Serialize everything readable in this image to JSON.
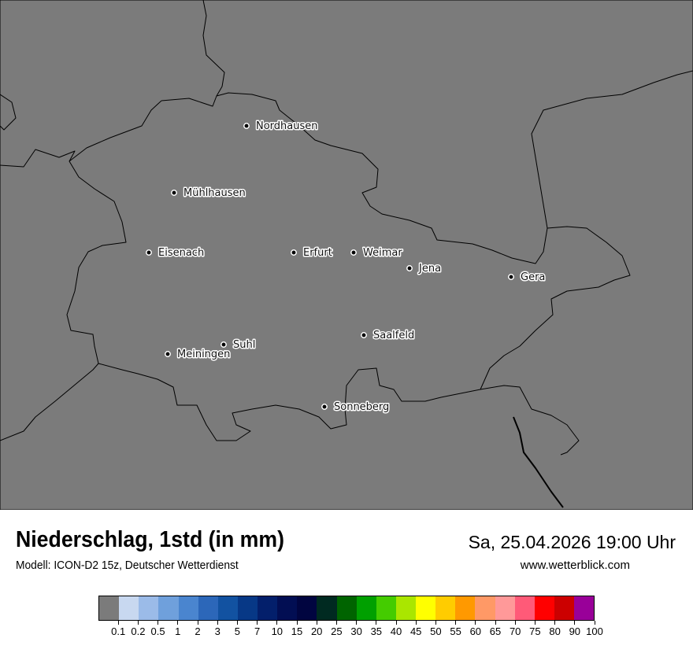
{
  "header": {
    "title": "Niederschlag, 1std (in mm)",
    "subtitle": "Modell: ICON-D2 15z, Deutscher Wetterdienst",
    "datetime": "Sa, 25.04.2026 19:00 Uhr",
    "website": "www.wetterblick.com"
  },
  "map": {
    "background_color": "#7b7b7b",
    "cities": [
      {
        "name": "Nordhausen"
      },
      {
        "name": "Mühlhausen"
      },
      {
        "name": "Eisenach"
      },
      {
        "name": "Erfurt"
      },
      {
        "name": "Weimar"
      },
      {
        "name": "Jena"
      },
      {
        "name": "Gera"
      },
      {
        "name": "Suhl"
      },
      {
        "name": "Meiningen"
      },
      {
        "name": "Saalfeld"
      },
      {
        "name": "Sonneberg"
      }
    ]
  },
  "legend": {
    "colors": [
      "#7b7b7b",
      "#c8d8f0",
      "#9bbbe8",
      "#6fa0dc",
      "#4a85cf",
      "#2c67b9",
      "#1252a1",
      "#073886",
      "#031f6b",
      "#020e53",
      "#010540",
      "#002a21",
      "#006400",
      "#00a000",
      "#44cc00",
      "#aae600",
      "#ffff00",
      "#ffcc00",
      "#ff9900",
      "#ff9966",
      "#ff9999",
      "#ff5a78",
      "#ff0000",
      "#cc0000",
      "#990099"
    ],
    "ticks": [
      "0.1",
      "0.2",
      "0.5",
      "1",
      "2",
      "3",
      "5",
      "7",
      "10",
      "15",
      "20",
      "25",
      "30",
      "35",
      "40",
      "45",
      "50",
      "55",
      "60",
      "65",
      "70",
      "75",
      "80",
      "90",
      "100"
    ]
  }
}
